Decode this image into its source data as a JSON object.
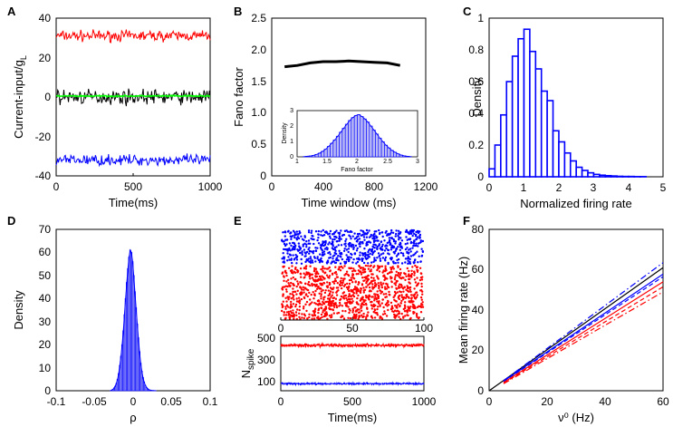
{
  "colors": {
    "red": "#ff0000",
    "blue": "#0000ff",
    "black": "#000000",
    "green": "#00ff00",
    "hist": "#0000ff",
    "hist_fill": "#b9b9f5"
  },
  "chart_data": [
    {
      "panel": "A",
      "type": "line",
      "xlabel": "Time(ms)",
      "ylabel": "Current-input/g",
      "ylabel_sub": "L",
      "xlim": [
        0,
        1000
      ],
      "ylim": [
        -40,
        40
      ],
      "xticks": [
        "0",
        "500",
        "1000"
      ],
      "yticks": [
        "-40",
        "-20",
        "0",
        "20",
        "40"
      ],
      "series": [
        {
          "name": "red",
          "mean": 31,
          "noise": 2.2
        },
        {
          "name": "black",
          "mean": 0,
          "noise": 3
        },
        {
          "name": "green",
          "mean": 0.5,
          "noise": 0.3
        },
        {
          "name": "blue",
          "mean": -32,
          "noise": 2.2
        }
      ]
    },
    {
      "panel": "B",
      "type": "line",
      "xlabel": "Time window (ms)",
      "ylabel": "Fano factor",
      "xlim": [
        0,
        1200
      ],
      "ylim": [
        0,
        2.5
      ],
      "xticks": [
        "0",
        "400",
        "800",
        "1200"
      ],
      "yticks": [
        "0",
        "0.5",
        "1.0",
        "1.5",
        "2.0",
        "2.5"
      ],
      "x": [
        100,
        200,
        300,
        400,
        500,
        600,
        700,
        800,
        900,
        1000
      ],
      "y": [
        1.73,
        1.75,
        1.79,
        1.81,
        1.81,
        1.82,
        1.81,
        1.8,
        1.79,
        1.75
      ],
      "inset": {
        "type": "bar",
        "xlabel": "Fano factor",
        "ylabel": "Density",
        "xlim": [
          1,
          3
        ],
        "ylim": [
          0,
          3
        ],
        "xticks": [
          "1",
          "1.5",
          "2",
          "2.5",
          "3"
        ],
        "yticks": [
          "0",
          "1",
          "2",
          "3"
        ],
        "bin_start": 1.1,
        "bin_width": 0.05,
        "values": [
          0.02,
          0.04,
          0.06,
          0.1,
          0.16,
          0.24,
          0.36,
          0.5,
          0.68,
          0.88,
          1.1,
          1.34,
          1.6,
          1.86,
          2.12,
          2.36,
          2.55,
          2.68,
          2.74,
          2.62,
          2.46,
          2.26,
          2.0,
          1.74,
          1.48,
          1.22,
          0.98,
          0.76,
          0.58,
          0.42,
          0.3,
          0.2,
          0.12,
          0.07,
          0.04,
          0.02
        ]
      }
    },
    {
      "panel": "C",
      "type": "bar",
      "xlabel": "Normalized firing rate",
      "ylabel": "Density",
      "xlim": [
        0,
        5
      ],
      "ylim": [
        0,
        1
      ],
      "xticks": [
        "0",
        "1",
        "2",
        "3",
        "4",
        "5"
      ],
      "yticks": [
        "0",
        "0.2",
        "0.4",
        "0.6",
        "0.8",
        "1"
      ],
      "bin_start": 0,
      "bin_width": 0.167,
      "values": [
        0.05,
        0.2,
        0.39,
        0.6,
        0.76,
        0.87,
        0.93,
        0.79,
        0.68,
        0.54,
        0.48,
        0.29,
        0.22,
        0.15,
        0.1,
        0.06,
        0.04,
        0.025,
        0.015,
        0.01,
        0.007,
        0.005,
        0.003,
        0.002,
        0.002,
        0.001,
        0.001
      ]
    },
    {
      "panel": "D",
      "type": "bar",
      "xlabel": "ρ",
      "ylabel": "Density",
      "xlim": [
        -0.1,
        0.1
      ],
      "ylim": [
        0,
        70
      ],
      "xticks": [
        "-0.1",
        "-0.05",
        "0",
        "0.05",
        "0.1"
      ],
      "yticks": [
        "0",
        "10",
        "20",
        "30",
        "40",
        "50",
        "60",
        "70"
      ],
      "bin_start": -0.03,
      "bin_width": 0.0015,
      "values": [
        0.1,
        0.3,
        0.6,
        1.2,
        2,
        3.2,
        5,
        7.5,
        11,
        15,
        20,
        26,
        33,
        40,
        47,
        53,
        58,
        61,
        60,
        56,
        50,
        43,
        36,
        29,
        23,
        17,
        12,
        8.5,
        5.8,
        3.8,
        2.4,
        1.5,
        0.9,
        0.5,
        0.3,
        0.2,
        0.1,
        0.1,
        0.05,
        0.05
      ]
    },
    {
      "panel": "E",
      "type": "scatter",
      "top": {
        "xlim": [
          0,
          100
        ],
        "xticks": [
          "0",
          "50",
          "100"
        ],
        "blue_rows": 40,
        "red_rows": 40
      },
      "bottom": {
        "xlabel": "Time(ms)",
        "ylabel": "N",
        "ylabel_sub": "spike",
        "xlim": [
          0,
          1000
        ],
        "ylim": [
          60,
          560
        ],
        "xticks": [
          "0",
          "500",
          "1000"
        ],
        "yticks": [
          "100",
          "300",
          "500"
        ],
        "series": [
          {
            "name": "red",
            "mean": 478,
            "noise": 12
          },
          {
            "name": "blue",
            "mean": 125,
            "noise": 6
          }
        ]
      }
    },
    {
      "panel": "F",
      "type": "line",
      "xlabel": "ν⁰ (Hz)",
      "ylabel": "Mean firing rate (Hz)",
      "xlim": [
        0,
        60
      ],
      "ylim": [
        0,
        80
      ],
      "xticks": [
        "0",
        "20",
        "40",
        "60"
      ],
      "yticks": [
        "0",
        "20",
        "40",
        "60",
        "80"
      ],
      "series": [
        {
          "name": "black",
          "style": "solid",
          "color": "#000000",
          "x": [
            0,
            60
          ],
          "y": [
            0,
            61
          ]
        },
        {
          "name": "blue-dashdot",
          "style": "dashdot",
          "color": "#0000ff",
          "x": [
            5,
            60
          ],
          "y": [
            5,
            63.5
          ]
        },
        {
          "name": "blue-solid",
          "style": "solid",
          "color": "#0000ff",
          "x": [
            5,
            60
          ],
          "y": [
            4.8,
            57.8
          ]
        },
        {
          "name": "blue-dashed",
          "style": "dashed",
          "color": "#0000ff",
          "x": [
            5,
            60
          ],
          "y": [
            4.6,
            56.5
          ]
        },
        {
          "name": "red-solid",
          "style": "solid",
          "color": "#ff0000",
          "x": [
            5,
            60
          ],
          "y": [
            4.1,
            54
          ]
        },
        {
          "name": "red-dashed",
          "style": "dashed",
          "color": "#ff0000",
          "x": [
            5,
            60
          ],
          "y": [
            3.8,
            51.5
          ]
        },
        {
          "name": "red-dashdot",
          "style": "dashdot",
          "color": "#ff0000",
          "x": [
            5,
            60
          ],
          "y": [
            3.5,
            49
          ]
        }
      ]
    }
  ],
  "panel_labels": [
    "A",
    "B",
    "C",
    "D",
    "E",
    "F"
  ]
}
